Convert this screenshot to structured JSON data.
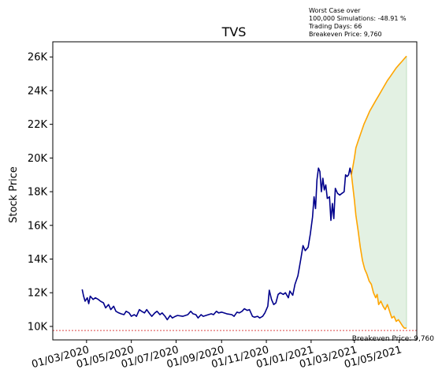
{
  "chart_data": {
    "type": "line",
    "title": "TVS",
    "ylabel": "Stock Price",
    "xlabel": "",
    "x_tick_labels": [
      "01/03/2020",
      "01/05/2020",
      "01/07/2020",
      "01/09/2020",
      "01/11/2020",
      "01/01/2021",
      "01/03/2021",
      "01/05/2021"
    ],
    "x_tick_dates": [
      "2020-03-01",
      "2020-05-01",
      "2020-07-01",
      "2020-09-01",
      "2020-11-01",
      "2021-01-01",
      "2021-03-01",
      "2021-05-01"
    ],
    "xlim": [
      "2020-01-15",
      "2021-05-25"
    ],
    "y_tick_values": [
      10000,
      12000,
      14000,
      16000,
      18000,
      20000,
      22000,
      24000,
      26000
    ],
    "y_tick_labels": [
      "10K",
      "12K",
      "14K",
      "16K",
      "18K",
      "20K",
      "22K",
      "24K",
      "26K"
    ],
    "ylim": [
      9200,
      26900
    ],
    "grid": false,
    "colors": {
      "historical": "#00008b",
      "upper_simulation": "#ffa500",
      "lower_simulation": "#ffa500",
      "band_fill": "#e3f1e3",
      "breakeven": "#d62728"
    },
    "series": [
      {
        "points": [
          [
            "2020-02-24",
            12200
          ],
          [
            "2020-02-26",
            11800
          ],
          [
            "2020-02-28",
            11500
          ],
          [
            "2020-03-02",
            11700
          ],
          [
            "2020-03-04",
            11350
          ],
          [
            "2020-03-06",
            11800
          ],
          [
            "2020-03-10",
            11600
          ],
          [
            "2020-03-13",
            11700
          ],
          [
            "2020-03-17",
            11600
          ],
          [
            "2020-03-20",
            11500
          ],
          [
            "2020-03-24",
            11400
          ],
          [
            "2020-03-27",
            11100
          ],
          [
            "2020-03-31",
            11300
          ],
          [
            "2020-04-03",
            11000
          ],
          [
            "2020-04-07",
            11200
          ],
          [
            "2020-04-10",
            10900
          ],
          [
            "2020-04-14",
            10800
          ],
          [
            "2020-04-17",
            10750
          ],
          [
            "2020-04-21",
            10700
          ],
          [
            "2020-04-24",
            10900
          ],
          [
            "2020-04-28",
            10800
          ],
          [
            "2020-05-01",
            10600
          ],
          [
            "2020-05-05",
            10700
          ],
          [
            "2020-05-08",
            10600
          ],
          [
            "2020-05-12",
            11000
          ],
          [
            "2020-05-15",
            10900
          ],
          [
            "2020-05-19",
            10800
          ],
          [
            "2020-05-22",
            11000
          ],
          [
            "2020-05-26",
            10750
          ],
          [
            "2020-05-29",
            10600
          ],
          [
            "2020-06-02",
            10800
          ],
          [
            "2020-06-05",
            10900
          ],
          [
            "2020-06-09",
            10700
          ],
          [
            "2020-06-12",
            10800
          ],
          [
            "2020-06-16",
            10600
          ],
          [
            "2020-06-19",
            10400
          ],
          [
            "2020-06-23",
            10650
          ],
          [
            "2020-06-26",
            10500
          ],
          [
            "2020-06-30",
            10600
          ],
          [
            "2020-07-03",
            10650
          ],
          [
            "2020-07-10",
            10600
          ],
          [
            "2020-07-17",
            10700
          ],
          [
            "2020-07-21",
            10900
          ],
          [
            "2020-07-24",
            10750
          ],
          [
            "2020-07-28",
            10700
          ],
          [
            "2020-07-31",
            10500
          ],
          [
            "2020-08-04",
            10700
          ],
          [
            "2020-08-07",
            10600
          ],
          [
            "2020-08-14",
            10700
          ],
          [
            "2020-08-18",
            10750
          ],
          [
            "2020-08-21",
            10700
          ],
          [
            "2020-08-25",
            10900
          ],
          [
            "2020-08-28",
            10800
          ],
          [
            "2020-09-01",
            10850
          ],
          [
            "2020-09-08",
            10750
          ],
          [
            "2020-09-15",
            10700
          ],
          [
            "2020-09-18",
            10600
          ],
          [
            "2020-09-22",
            10850
          ],
          [
            "2020-09-25",
            10800
          ],
          [
            "2020-09-29",
            10900
          ],
          [
            "2020-10-02",
            11050
          ],
          [
            "2020-10-06",
            10950
          ],
          [
            "2020-10-09",
            11000
          ],
          [
            "2020-10-13",
            10600
          ],
          [
            "2020-10-16",
            10550
          ],
          [
            "2020-10-20",
            10600
          ],
          [
            "2020-10-23",
            10500
          ],
          [
            "2020-10-27",
            10600
          ],
          [
            "2020-10-30",
            10800
          ],
          [
            "2020-11-03",
            11200
          ],
          [
            "2020-11-05",
            12150
          ],
          [
            "2020-11-08",
            11600
          ],
          [
            "2020-11-11",
            11300
          ],
          [
            "2020-11-14",
            11400
          ],
          [
            "2020-11-17",
            11900
          ],
          [
            "2020-11-20",
            12000
          ],
          [
            "2020-11-24",
            11900
          ],
          [
            "2020-11-27",
            12000
          ],
          [
            "2020-12-01",
            11700
          ],
          [
            "2020-12-03",
            12100
          ],
          [
            "2020-12-07",
            11850
          ],
          [
            "2020-12-10",
            12500
          ],
          [
            "2020-12-14",
            13000
          ],
          [
            "2020-12-18",
            14000
          ],
          [
            "2020-12-21",
            14800
          ],
          [
            "2020-12-24",
            14500
          ],
          [
            "2020-12-28",
            14700
          ],
          [
            "2020-12-31",
            15500
          ],
          [
            "2021-01-03",
            16500
          ],
          [
            "2021-01-05",
            17700
          ],
          [
            "2021-01-07",
            17000
          ],
          [
            "2021-01-09",
            18700
          ],
          [
            "2021-01-11",
            19400
          ],
          [
            "2021-01-13",
            19200
          ],
          [
            "2021-01-15",
            18000
          ],
          [
            "2021-01-17",
            18800
          ],
          [
            "2021-01-19",
            18100
          ],
          [
            "2021-01-21",
            18400
          ],
          [
            "2021-01-23",
            17600
          ],
          [
            "2021-01-26",
            17700
          ],
          [
            "2021-01-28",
            16300
          ],
          [
            "2021-01-30",
            17300
          ],
          [
            "2021-02-01",
            16400
          ],
          [
            "2021-02-03",
            18200
          ],
          [
            "2021-02-06",
            17900
          ],
          [
            "2021-02-09",
            17800
          ],
          [
            "2021-02-12",
            17900
          ],
          [
            "2021-02-15",
            18000
          ],
          [
            "2021-02-17",
            19000
          ],
          [
            "2021-02-19",
            18900
          ],
          [
            "2021-02-21",
            19000
          ],
          [
            "2021-02-23",
            19400
          ],
          [
            "2021-02-25",
            19000
          ]
        ]
      },
      {
        "points": [
          [
            "2021-02-25",
            19000
          ],
          [
            "2021-03-01",
            20000
          ],
          [
            "2021-03-03",
            20600
          ],
          [
            "2021-03-06",
            21000
          ],
          [
            "2021-03-10",
            21500
          ],
          [
            "2021-03-14",
            22000
          ],
          [
            "2021-03-18",
            22400
          ],
          [
            "2021-03-22",
            22800
          ],
          [
            "2021-03-26",
            23100
          ],
          [
            "2021-03-30",
            23400
          ],
          [
            "2021-04-03",
            23700
          ],
          [
            "2021-04-07",
            24000
          ],
          [
            "2021-04-11",
            24300
          ],
          [
            "2021-04-15",
            24600
          ],
          [
            "2021-04-19",
            24850
          ],
          [
            "2021-04-23",
            25100
          ],
          [
            "2021-04-27",
            25350
          ],
          [
            "2021-05-01",
            25550
          ],
          [
            "2021-05-05",
            25750
          ],
          [
            "2021-05-09",
            25950
          ],
          [
            "2021-05-11",
            26050
          ]
        ]
      },
      {
        "points": [
          [
            "2021-02-25",
            19000
          ],
          [
            "2021-03-01",
            17500
          ],
          [
            "2021-03-03",
            16600
          ],
          [
            "2021-03-06",
            15700
          ],
          [
            "2021-03-09",
            14700
          ],
          [
            "2021-03-12",
            13900
          ],
          [
            "2021-03-15",
            13400
          ],
          [
            "2021-03-18",
            13100
          ],
          [
            "2021-03-21",
            12700
          ],
          [
            "2021-03-24",
            12500
          ],
          [
            "2021-03-27",
            12000
          ],
          [
            "2021-03-30",
            11700
          ],
          [
            "2021-04-01",
            11900
          ],
          [
            "2021-04-03",
            11300
          ],
          [
            "2021-04-06",
            11500
          ],
          [
            "2021-04-09",
            11200
          ],
          [
            "2021-04-12",
            11000
          ],
          [
            "2021-04-15",
            11300
          ],
          [
            "2021-04-18",
            10900
          ],
          [
            "2021-04-21",
            10500
          ],
          [
            "2021-04-24",
            10600
          ],
          [
            "2021-04-27",
            10300
          ],
          [
            "2021-04-30",
            10400
          ],
          [
            "2021-05-03",
            10200
          ],
          [
            "2021-05-06",
            10000
          ],
          [
            "2021-05-08",
            9900
          ],
          [
            "2021-05-11",
            9900
          ]
        ]
      }
    ],
    "breakeven": {
      "value": 9760,
      "label": "Breakeven Price: 9,760"
    },
    "annotation_lines": [
      "Worst Case over",
      "100,000 Simulations: -48.91 %",
      "Trading Days: 66",
      "Breakeven Price: 9,760"
    ]
  }
}
